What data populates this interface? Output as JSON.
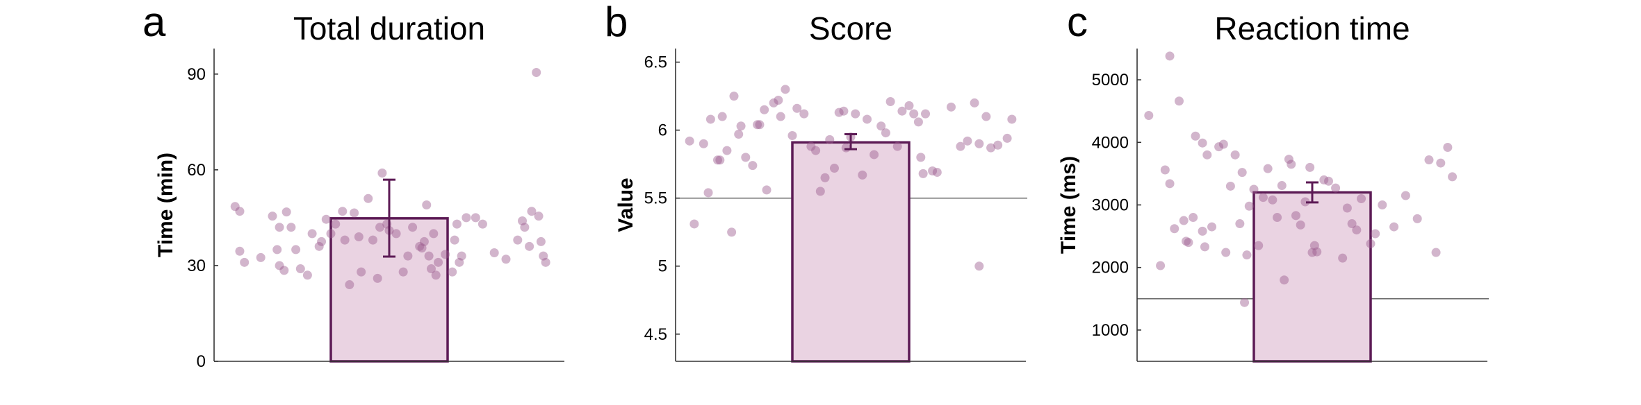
{
  "figure": {
    "bar_fill": "#ead3e2",
    "bar_edge": "#5c1a55",
    "dot_color": "#9c5a8f",
    "errorbar_color": "#5c1a55",
    "axis_color": "#333333",
    "refline_color": "#555555"
  },
  "chart_data": [
    {
      "type": "bar",
      "panel_letter": "a",
      "title": "Total duration",
      "xlabel": "",
      "ylabel": "Time (min)",
      "ylim": [
        0,
        98
      ],
      "yticks": [
        0,
        30,
        60,
        90
      ],
      "ytick_labels": [
        "0",
        "30",
        "60",
        "90"
      ],
      "bar_value": 44.8,
      "error_low": 32.8,
      "error_high": 56.9,
      "reference_line": null,
      "points": [
        [
          0.09,
          48.5
        ],
        [
          0.11,
          47
        ],
        [
          0.13,
          31
        ],
        [
          0.11,
          34.5
        ],
        [
          0.2,
          32.5
        ],
        [
          0.25,
          45.5
        ],
        [
          0.28,
          42
        ],
        [
          0.33,
          42
        ],
        [
          0.27,
          35
        ],
        [
          0.31,
          46.8
        ],
        [
          0.35,
          35
        ],
        [
          0.28,
          30
        ],
        [
          0.3,
          28.5
        ],
        [
          0.37,
          29
        ],
        [
          0.4,
          27
        ],
        [
          0.42,
          40
        ],
        [
          0.45,
          36
        ],
        [
          0.46,
          37.5
        ],
        [
          0.48,
          44.5
        ],
        [
          0.5,
          40
        ],
        [
          0.52,
          43
        ],
        [
          0.55,
          47
        ],
        [
          0.56,
          38
        ],
        [
          0.58,
          24
        ],
        [
          0.6,
          46.5
        ],
        [
          0.62,
          39
        ],
        [
          0.63,
          28
        ],
        [
          0.66,
          51
        ],
        [
          0.68,
          38
        ],
        [
          0.7,
          26
        ],
        [
          0.72,
          59
        ],
        [
          0.71,
          42
        ],
        [
          0.74,
          43
        ],
        [
          0.75,
          41
        ],
        [
          0.78,
          40
        ],
        [
          0.81,
          28
        ],
        [
          0.83,
          33
        ],
        [
          0.85,
          42
        ],
        [
          0.88,
          36
        ],
        [
          0.89,
          35.5
        ],
        [
          0.9,
          37.5
        ],
        [
          0.92,
          33
        ],
        [
          0.91,
          49
        ],
        [
          0.94,
          40
        ],
        [
          0.96,
          31
        ],
        [
          0.95,
          27
        ],
        [
          0.93,
          29
        ],
        [
          0.99,
          33.5
        ],
        [
          1.02,
          28
        ],
        [
          1.04,
          43
        ],
        [
          1.03,
          38
        ],
        [
          1.06,
          33
        ],
        [
          1.05,
          31
        ],
        [
          1.08,
          45
        ],
        [
          1.12,
          45
        ],
        [
          1.15,
          43
        ],
        [
          1.2,
          34
        ],
        [
          1.25,
          32
        ],
        [
          1.3,
          38
        ],
        [
          1.33,
          42
        ],
        [
          1.35,
          36
        ],
        [
          1.36,
          47
        ],
        [
          1.38,
          90.5
        ],
        [
          1.4,
          37.5
        ],
        [
          1.42,
          31
        ],
        [
          1.41,
          33
        ],
        [
          1.39,
          45.5
        ],
        [
          1.32,
          44
        ]
      ]
    },
    {
      "type": "bar",
      "panel_letter": "b",
      "title": "Score",
      "xlabel": "",
      "ylabel": "Value",
      "ylim": [
        4.3,
        6.6
      ],
      "yticks": [
        4.5,
        5,
        5.5,
        6,
        6.5
      ],
      "ytick_labels": [
        "4.5",
        "5",
        "5.5",
        "6",
        "6.5"
      ],
      "bar_value": 5.91,
      "error_low": 5.86,
      "error_high": 5.97,
      "reference_line": 5.5,
      "points": [
        [
          0.06,
          5.92
        ],
        [
          0.08,
          5.31
        ],
        [
          0.12,
          5.9
        ],
        [
          0.14,
          5.54
        ],
        [
          0.15,
          6.08
        ],
        [
          0.18,
          5.78
        ],
        [
          0.2,
          6.1
        ],
        [
          0.19,
          5.78
        ],
        [
          0.22,
          5.85
        ],
        [
          0.24,
          5.25
        ],
        [
          0.25,
          6.25
        ],
        [
          0.27,
          5.97
        ],
        [
          0.28,
          6.03
        ],
        [
          0.3,
          5.8
        ],
        [
          0.33,
          5.74
        ],
        [
          0.35,
          6.04
        ],
        [
          0.36,
          6.04
        ],
        [
          0.38,
          6.15
        ],
        [
          0.39,
          5.56
        ],
        [
          0.42,
          6.2
        ],
        [
          0.44,
          6.22
        ],
        [
          0.45,
          6.1
        ],
        [
          0.47,
          6.3
        ],
        [
          0.5,
          5.96
        ],
        [
          0.52,
          6.16
        ],
        [
          0.55,
          6.12
        ],
        [
          0.58,
          5.88
        ],
        [
          0.6,
          5.85
        ],
        [
          0.62,
          5.55
        ],
        [
          0.64,
          5.65
        ],
        [
          0.66,
          5.93
        ],
        [
          0.68,
          5.72
        ],
        [
          0.7,
          6.13
        ],
        [
          0.72,
          6.14
        ],
        [
          0.73,
          5.87
        ],
        [
          0.75,
          5.95
        ],
        [
          0.77,
          6.12
        ],
        [
          0.8,
          5.67
        ],
        [
          0.82,
          6.08
        ],
        [
          0.85,
          5.82
        ],
        [
          0.88,
          6.03
        ],
        [
          0.9,
          5.98
        ],
        [
          0.92,
          6.21
        ],
        [
          0.95,
          5.88
        ],
        [
          0.97,
          6.14
        ],
        [
          1.0,
          6.18
        ],
        [
          1.02,
          6.12
        ],
        [
          1.04,
          6.06
        ],
        [
          1.05,
          5.8
        ],
        [
          1.06,
          5.68
        ],
        [
          1.07,
          6.12
        ],
        [
          1.1,
          5.7
        ],
        [
          1.12,
          5.69
        ],
        [
          1.18,
          6.17
        ],
        [
          1.22,
          5.88
        ],
        [
          1.25,
          5.92
        ],
        [
          1.28,
          6.2
        ],
        [
          1.3,
          5.9
        ],
        [
          1.33,
          6.1
        ],
        [
          1.35,
          5.87
        ],
        [
          1.38,
          5.89
        ],
        [
          1.42,
          5.94
        ],
        [
          1.44,
          6.08
        ],
        [
          1.3,
          5.0
        ]
      ]
    },
    {
      "type": "bar",
      "panel_letter": "c",
      "title": "Reaction time",
      "xlabel": "",
      "ylabel": "Time (ms)",
      "ylim": [
        500,
        5500
      ],
      "yticks": [
        1000,
        2000,
        3000,
        4000,
        5000
      ],
      "ytick_labels": [
        "1000",
        "2000",
        "3000",
        "4000",
        "5000"
      ],
      "bar_value": 3200,
      "error_low": 3040,
      "error_high": 3360,
      "reference_line": 1500,
      "points": [
        [
          0.05,
          4430
        ],
        [
          0.1,
          2030
        ],
        [
          0.12,
          3560
        ],
        [
          0.14,
          3340
        ],
        [
          0.14,
          5380
        ],
        [
          0.16,
          2620
        ],
        [
          0.18,
          4660
        ],
        [
          0.2,
          2750
        ],
        [
          0.21,
          2420
        ],
        [
          0.22,
          2400
        ],
        [
          0.24,
          2800
        ],
        [
          0.25,
          4100
        ],
        [
          0.28,
          2580
        ],
        [
          0.29,
          2330
        ],
        [
          0.28,
          3990
        ],
        [
          0.3,
          3800
        ],
        [
          0.32,
          2650
        ],
        [
          0.35,
          3930
        ],
        [
          0.37,
          3970
        ],
        [
          0.38,
          2240
        ],
        [
          0.4,
          3300
        ],
        [
          0.42,
          3800
        ],
        [
          0.44,
          2700
        ],
        [
          0.45,
          3520
        ],
        [
          0.46,
          1440
        ],
        [
          0.47,
          2200
        ],
        [
          0.48,
          2980
        ],
        [
          0.5,
          3250
        ],
        [
          0.52,
          2350
        ],
        [
          0.54,
          3120
        ],
        [
          0.56,
          3580
        ],
        [
          0.58,
          3080
        ],
        [
          0.6,
          2800
        ],
        [
          0.62,
          3310
        ],
        [
          0.63,
          1800
        ],
        [
          0.65,
          3730
        ],
        [
          0.66,
          3650
        ],
        [
          0.68,
          2830
        ],
        [
          0.7,
          2680
        ],
        [
          0.72,
          3050
        ],
        [
          0.74,
          3600
        ],
        [
          0.75,
          2240
        ],
        [
          0.76,
          2350
        ],
        [
          0.77,
          2250
        ],
        [
          0.8,
          3400
        ],
        [
          0.82,
          3380
        ],
        [
          0.85,
          3270
        ],
        [
          0.88,
          2150
        ],
        [
          0.9,
          2950
        ],
        [
          0.92,
          2700
        ],
        [
          0.94,
          2600
        ],
        [
          0.96,
          3100
        ],
        [
          1.0,
          2380
        ],
        [
          1.02,
          2540
        ],
        [
          1.05,
          3000
        ],
        [
          1.1,
          2650
        ],
        [
          1.15,
          3150
        ],
        [
          1.2,
          2780
        ],
        [
          1.25,
          3720
        ],
        [
          1.28,
          2240
        ],
        [
          1.3,
          3670
        ],
        [
          1.33,
          3920
        ],
        [
          1.35,
          3450
        ]
      ]
    }
  ]
}
